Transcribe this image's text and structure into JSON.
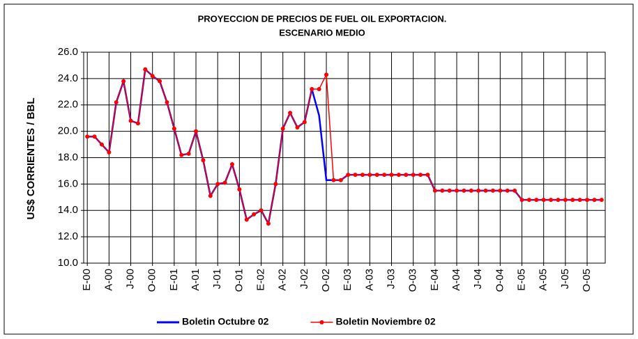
{
  "chart_data": {
    "type": "line",
    "title": "PROYECCION DE PRECIOS DE FUEL OIL EXPORTACION.",
    "subtitle": "ESCENARIO MEDIO",
    "y_label": "US$ CORRIENTES / BBL",
    "categories": [
      "E-00",
      null,
      null,
      "A-00",
      null,
      null,
      "J-00",
      null,
      null,
      "O-00",
      null,
      null,
      "E-01",
      null,
      null,
      "A-01",
      null,
      null,
      "J-01",
      null,
      null,
      "O-01",
      null,
      null,
      "E-02",
      null,
      null,
      "A-02",
      null,
      null,
      "J-02",
      null,
      null,
      "O-02",
      null,
      null,
      "E-03",
      null,
      null,
      "A-03",
      null,
      null,
      "J-03",
      null,
      null,
      "O-03",
      null,
      null,
      "E-04",
      null,
      null,
      "A-04",
      null,
      null,
      "J-04",
      null,
      null,
      "O-04",
      null,
      null,
      "E-05",
      null,
      null,
      "A-05",
      null,
      null,
      "J-05",
      null,
      null,
      "O-05",
      null,
      null
    ],
    "series": [
      {
        "name": "Boletin Octubre 02",
        "color": "#0000ff",
        "markers": false,
        "values": [
          19.6,
          19.6,
          19.0,
          18.4,
          22.2,
          23.8,
          20.8,
          20.6,
          24.7,
          24.2,
          23.8,
          22.2,
          20.2,
          18.2,
          18.3,
          20.0,
          17.8,
          15.1,
          16.0,
          16.1,
          17.5,
          15.6,
          13.3,
          13.7,
          14.0,
          13.0,
          16.0,
          20.2,
          21.4,
          20.3,
          20.7,
          23.2,
          21.2,
          16.3,
          16.3,
          16.3,
          16.7,
          16.7,
          16.7,
          16.7,
          16.7,
          16.7,
          16.7,
          16.7,
          16.7,
          16.7,
          16.7,
          16.7,
          15.5,
          15.5,
          15.5,
          15.5,
          15.5,
          15.5,
          15.5,
          15.5,
          15.5,
          15.5,
          15.5,
          15.5,
          14.8,
          14.8,
          14.8,
          14.8,
          14.8,
          14.8,
          14.8,
          14.8,
          14.8,
          14.8,
          14.8,
          14.8
        ]
      },
      {
        "name": "Boletin Noviembre 02",
        "color": "#ff0000",
        "markers": true,
        "values": [
          19.6,
          19.6,
          19.0,
          18.4,
          22.2,
          23.8,
          20.8,
          20.6,
          24.7,
          24.2,
          23.8,
          22.2,
          20.2,
          18.2,
          18.3,
          20.0,
          17.8,
          15.1,
          16.0,
          16.1,
          17.5,
          15.6,
          13.3,
          13.7,
          14.0,
          13.0,
          16.0,
          20.2,
          21.4,
          20.3,
          20.7,
          23.2,
          23.2,
          24.3,
          16.3,
          16.3,
          16.7,
          16.7,
          16.7,
          16.7,
          16.7,
          16.7,
          16.7,
          16.7,
          16.7,
          16.7,
          16.7,
          16.7,
          15.5,
          15.5,
          15.5,
          15.5,
          15.5,
          15.5,
          15.5,
          15.5,
          15.5,
          15.5,
          15.5,
          15.5,
          14.8,
          14.8,
          14.8,
          14.8,
          14.8,
          14.8,
          14.8,
          14.8,
          14.8,
          14.8,
          14.8,
          14.8
        ]
      }
    ],
    "ylim": [
      10,
      26
    ],
    "yticks": [
      {
        "value": 10,
        "label": "10.0"
      },
      {
        "value": 12,
        "label": "12.0"
      },
      {
        "value": 14,
        "label": "14.0"
      },
      {
        "value": 16,
        "label": "16.0"
      },
      {
        "value": 18,
        "label": "18.0"
      },
      {
        "value": 20,
        "label": "20.0"
      },
      {
        "value": 22,
        "label": "22.0"
      },
      {
        "value": 24,
        "label": "24.0"
      },
      {
        "value": 26,
        "label": "26.0"
      }
    ],
    "grid": true,
    "legend": "bottom"
  }
}
